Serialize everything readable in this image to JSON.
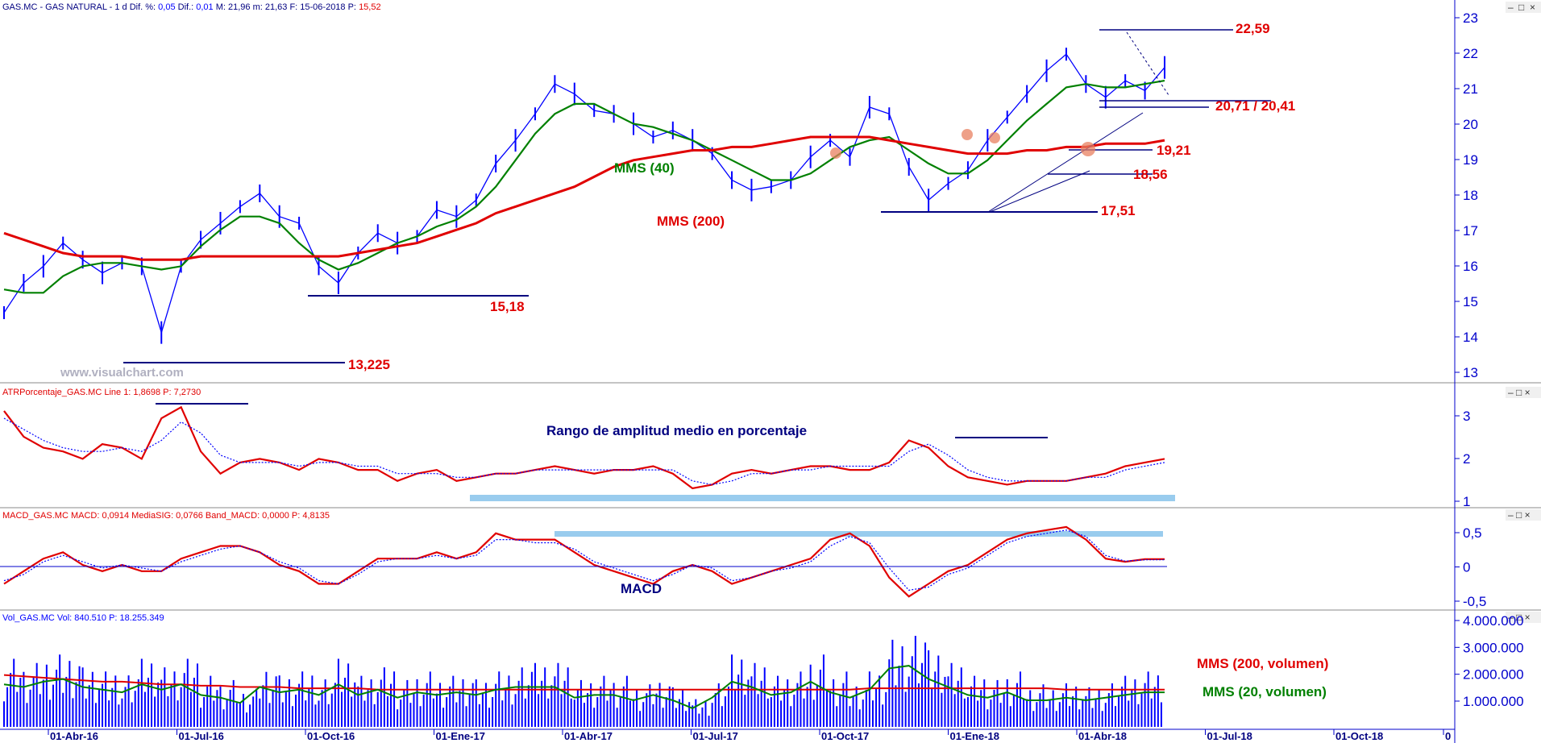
{
  "panels": {
    "price": {
      "title_prefix": "GAS.MC - GAS NATURAL -  1 d  Dif. %: ",
      "dif_pct": "0,05",
      "dif_label": " Dif.: ",
      "dif": "0,01",
      "m_label": " M: 21,96  m: 21,63  F: 15-06-2018  P: ",
      "p": "15,52"
    },
    "atr": {
      "title": "ATRPorcentaje_GAS.MC  Line 1: 1,8698  P: 7,2730"
    },
    "macd": {
      "title": "MACD_GAS.MC  MACD: 0,0914  MediaSIG: 0,0766  Band_MACD: 0,0000  P: 4,8135"
    },
    "vol": {
      "title": "Vol_GAS.MC  Vol: 840.510  P: 18.255.349"
    }
  },
  "watermark": "www.visualchart.com",
  "annotations": {
    "price": [
      "22,59",
      "20,71 / 20,41",
      "19,21",
      "18,56",
      "17,51",
      "15,18",
      "13,225"
    ],
    "mms40": "MMS (40)",
    "mms200": "MMS (200)",
    "atr_label": "Rango de amplitud medio en porcentaje",
    "macd_label": "MACD",
    "vol_mms200": "MMS (200, volumen)",
    "vol_mms20": "MMS (20, volumen)"
  },
  "x_axis": {
    "dates": [
      "01-Abr-16",
      "01-Jul-16",
      "01-Oct-16",
      "01-Ene-17",
      "01-Abr-17",
      "01-Jul-17",
      "01-Oct-17",
      "01-Ene-18",
      "01-Abr-18",
      "01-Jul-18",
      "01-Oct-18",
      "0"
    ]
  },
  "colors": {
    "price_bars": "#0000ff",
    "mms40": "#008000",
    "mms200": "#e00000",
    "support_lines": "#000080",
    "highlight_band": "#99ccee",
    "circle": "#e88060"
  },
  "chart_data": [
    {
      "type": "line",
      "panel": "price",
      "y_ticks": [
        "23",
        "22",
        "21",
        "20",
        "19",
        "18",
        "17",
        "16",
        "15",
        "14",
        "13"
      ],
      "ylim": [
        12.6,
        23.3
      ],
      "x": [
        "2016-02-12",
        "2016-03-01",
        "2016-03-15",
        "2016-04-01",
        "2016-04-20",
        "2016-05-10",
        "2016-05-25",
        "2016-06-10",
        "2016-06-24",
        "2016-06-28",
        "2016-07-15",
        "2016-08-01",
        "2016-08-15",
        "2016-09-01",
        "2016-09-15",
        "2016-10-01",
        "2016-10-20",
        "2016-11-05",
        "2016-11-20",
        "2016-12-01",
        "2016-12-20",
        "2017-01-10",
        "2017-02-01",
        "2017-02-20",
        "2017-03-10",
        "2017-03-25",
        "2017-04-10",
        "2017-04-25",
        "2017-05-10",
        "2017-05-25",
        "2017-06-10",
        "2017-06-25",
        "2017-07-10",
        "2017-07-25",
        "2017-08-10",
        "2017-08-25",
        "2017-09-10",
        "2017-09-25",
        "2017-10-10",
        "2017-10-25",
        "2017-11-10",
        "2017-11-25",
        "2017-12-10",
        "2017-12-25",
        "2018-01-05",
        "2018-01-15",
        "2018-01-25",
        "2018-02-05",
        "2018-02-15",
        "2018-02-25",
        "2018-03-10",
        "2018-03-25",
        "2018-04-05",
        "2018-04-20",
        "2018-05-01",
        "2018-05-10",
        "2018-05-20",
        "2018-05-30",
        "2018-06-08",
        "2018-06-15"
      ],
      "series": [
        {
          "values": [
            14.4,
            15.3,
            15.8,
            16.5,
            16.0,
            15.6,
            15.9,
            15.8,
            13.8,
            15.8,
            16.6,
            17.1,
            17.6,
            18.0,
            17.3,
            17.1,
            15.8,
            15.3,
            16.2,
            16.8,
            16.5,
            16.7,
            17.5,
            17.3,
            17.8,
            18.9,
            19.6,
            20.4,
            21.3,
            21.0,
            20.5,
            20.4,
            20.1,
            19.7,
            19.9,
            19.6,
            19.2,
            18.4,
            18.1,
            18.2,
            18.4,
            19.1,
            19.6,
            19.1,
            20.6,
            20.4,
            18.8,
            17.8,
            18.3,
            18.7,
            19.6,
            20.3,
            21.0,
            21.7,
            22.2,
            21.3,
            20.9,
            21.4,
            21.1,
            21.8
          ]
        },
        {
          "name": "MMS (40)",
          "values": [
            15.1,
            15.0,
            15.0,
            15.5,
            15.8,
            15.9,
            15.9,
            15.8,
            15.7,
            15.8,
            16.4,
            16.9,
            17.3,
            17.3,
            17.1,
            16.5,
            16.0,
            15.7,
            15.9,
            16.2,
            16.5,
            16.7,
            17.0,
            17.2,
            17.6,
            18.2,
            19.0,
            19.8,
            20.4,
            20.7,
            20.7,
            20.4,
            20.1,
            20.0,
            19.8,
            19.6,
            19.3,
            19.0,
            18.7,
            18.4,
            18.4,
            18.6,
            19.0,
            19.4,
            19.6,
            19.7,
            19.3,
            18.9,
            18.6,
            18.6,
            19.0,
            19.6,
            20.2,
            20.7,
            21.2,
            21.3,
            21.2,
            21.2,
            21.3,
            21.4
          ]
        },
        {
          "name": "MMS (200)",
          "values": [
            16.8,
            16.6,
            16.4,
            16.2,
            16.1,
            16.1,
            16.1,
            16.0,
            16.0,
            16.0,
            16.1,
            16.1,
            16.1,
            16.1,
            16.1,
            16.1,
            16.1,
            16.1,
            16.2,
            16.3,
            16.4,
            16.5,
            16.7,
            16.9,
            17.1,
            17.4,
            17.6,
            17.8,
            18.0,
            18.2,
            18.5,
            18.8,
            19.0,
            19.1,
            19.2,
            19.3,
            19.3,
            19.4,
            19.4,
            19.5,
            19.6,
            19.7,
            19.7,
            19.7,
            19.7,
            19.6,
            19.5,
            19.4,
            19.3,
            19.2,
            19.2,
            19.2,
            19.3,
            19.3,
            19.4,
            19.4,
            19.5,
            19.5,
            19.5,
            19.6
          ]
        }
      ]
    },
    {
      "type": "line",
      "panel": "atr",
      "y_ticks": [
        "3",
        "2",
        "1"
      ],
      "ylim": [
        0.75,
        3.35
      ],
      "series": [
        {
          "values": [
            3.2,
            2.5,
            2.2,
            2.1,
            1.9,
            2.3,
            2.2,
            1.9,
            3.0,
            3.3,
            2.1,
            1.5,
            1.8,
            1.9,
            1.8,
            1.6,
            1.9,
            1.8,
            1.6,
            1.6,
            1.3,
            1.5,
            1.6,
            1.3,
            1.4,
            1.5,
            1.5,
            1.6,
            1.7,
            1.6,
            1.5,
            1.6,
            1.6,
            1.7,
            1.5,
            1.1,
            1.2,
            1.5,
            1.6,
            1.5,
            1.6,
            1.7,
            1.7,
            1.6,
            1.6,
            1.8,
            2.4,
            2.2,
            1.7,
            1.4,
            1.3,
            1.2,
            1.3,
            1.3,
            1.3,
            1.4,
            1.5,
            1.7,
            1.8,
            1.9
          ]
        },
        {
          "values": [
            3.0,
            2.7,
            2.4,
            2.2,
            2.1,
            2.1,
            2.2,
            2.1,
            2.4,
            2.9,
            2.6,
            2.0,
            1.8,
            1.8,
            1.8,
            1.7,
            1.8,
            1.8,
            1.7,
            1.7,
            1.5,
            1.5,
            1.5,
            1.4,
            1.4,
            1.5,
            1.5,
            1.6,
            1.6,
            1.6,
            1.6,
            1.6,
            1.6,
            1.6,
            1.6,
            1.3,
            1.2,
            1.3,
            1.5,
            1.5,
            1.6,
            1.6,
            1.7,
            1.7,
            1.7,
            1.7,
            2.1,
            2.3,
            2.0,
            1.6,
            1.4,
            1.3,
            1.3,
            1.3,
            1.3,
            1.4,
            1.4,
            1.6,
            1.7,
            1.8
          ]
        }
      ]
    },
    {
      "type": "line",
      "panel": "macd",
      "y_ticks": [
        "0,5",
        "0",
        "-0,5"
      ],
      "ylim": [
        -0.65,
        0.65
      ],
      "series": [
        {
          "values": [
            -0.3,
            -0.1,
            0.1,
            0.2,
            0.0,
            -0.1,
            0.0,
            -0.1,
            -0.1,
            0.1,
            0.2,
            0.3,
            0.3,
            0.2,
            0.0,
            -0.1,
            -0.3,
            -0.3,
            -0.1,
            0.1,
            0.1,
            0.1,
            0.2,
            0.1,
            0.2,
            0.5,
            0.4,
            0.4,
            0.4,
            0.2,
            0.0,
            -0.1,
            -0.2,
            -0.3,
            -0.1,
            0.0,
            -0.1,
            -0.3,
            -0.2,
            -0.1,
            0.0,
            0.1,
            0.4,
            0.5,
            0.3,
            -0.2,
            -0.5,
            -0.3,
            -0.1,
            0.0,
            0.2,
            0.4,
            0.5,
            0.55,
            0.6,
            0.4,
            0.1,
            0.05,
            0.09,
            0.09
          ]
        },
        {
          "values": [
            -0.25,
            -0.15,
            0.05,
            0.15,
            0.05,
            -0.05,
            0.0,
            -0.05,
            -0.1,
            0.05,
            0.15,
            0.25,
            0.3,
            0.2,
            0.05,
            -0.05,
            -0.25,
            -0.3,
            -0.15,
            0.05,
            0.1,
            0.1,
            0.15,
            0.1,
            0.15,
            0.4,
            0.4,
            0.35,
            0.35,
            0.25,
            0.05,
            -0.05,
            -0.15,
            -0.25,
            -0.15,
            0.0,
            -0.05,
            -0.25,
            -0.2,
            -0.1,
            -0.05,
            0.05,
            0.3,
            0.45,
            0.35,
            -0.05,
            -0.4,
            -0.35,
            -0.15,
            -0.05,
            0.15,
            0.35,
            0.45,
            0.5,
            0.55,
            0.45,
            0.15,
            0.06,
            0.08,
            0.08
          ]
        }
      ]
    },
    {
      "type": "bar",
      "panel": "vol",
      "y_ticks": [
        "4.000.000",
        "3.000.000",
        "2.000.000",
        "1.000.000"
      ],
      "ylim": [
        0,
        4000000
      ],
      "series": [
        {
          "name": "MMS (200, volumen)",
          "values": [
            1950000,
            1900000,
            1850000,
            1800000,
            1750000,
            1700000,
            1700000,
            1650000,
            1600000,
            1600000,
            1550000,
            1550000,
            1500000,
            1500000,
            1500000,
            1450000,
            1450000,
            1450000,
            1450000,
            1400000,
            1400000,
            1400000,
            1400000,
            1400000,
            1400000,
            1400000,
            1400000,
            1400000,
            1400000,
            1400000,
            1400000,
            1400000,
            1400000,
            1400000,
            1400000,
            1400000,
            1400000,
            1400000,
            1400000,
            1400000,
            1400000,
            1400000,
            1400000,
            1400000,
            1450000,
            1450000,
            1450000,
            1450000,
            1450000,
            1450000,
            1450000,
            1450000,
            1450000,
            1450000,
            1400000,
            1400000,
            1400000,
            1400000,
            1400000,
            1400000
          ]
        },
        {
          "name": "MMS (20, volumen)",
          "values": [
            1600000,
            1500000,
            1700000,
            1800000,
            1500000,
            1400000,
            1300000,
            1600000,
            1400000,
            1600000,
            1200000,
            1100000,
            900000,
            1500000,
            1300000,
            1400000,
            1200000,
            1600000,
            1200000,
            1400000,
            1100000,
            1300000,
            1200000,
            1300000,
            1200000,
            1400000,
            1500000,
            1500000,
            1500000,
            1100000,
            1200000,
            1200000,
            1000000,
            1200000,
            1000000,
            700000,
            1100000,
            1700000,
            1500000,
            1200000,
            1300000,
            1700000,
            1300000,
            1100000,
            1400000,
            2200000,
            2300000,
            1800000,
            1500000,
            1200000,
            1100000,
            1300000,
            1000000,
            1000000,
            1100000,
            1000000,
            1100000,
            1200000,
            1300000,
            1300000
          ]
        }
      ]
    }
  ]
}
